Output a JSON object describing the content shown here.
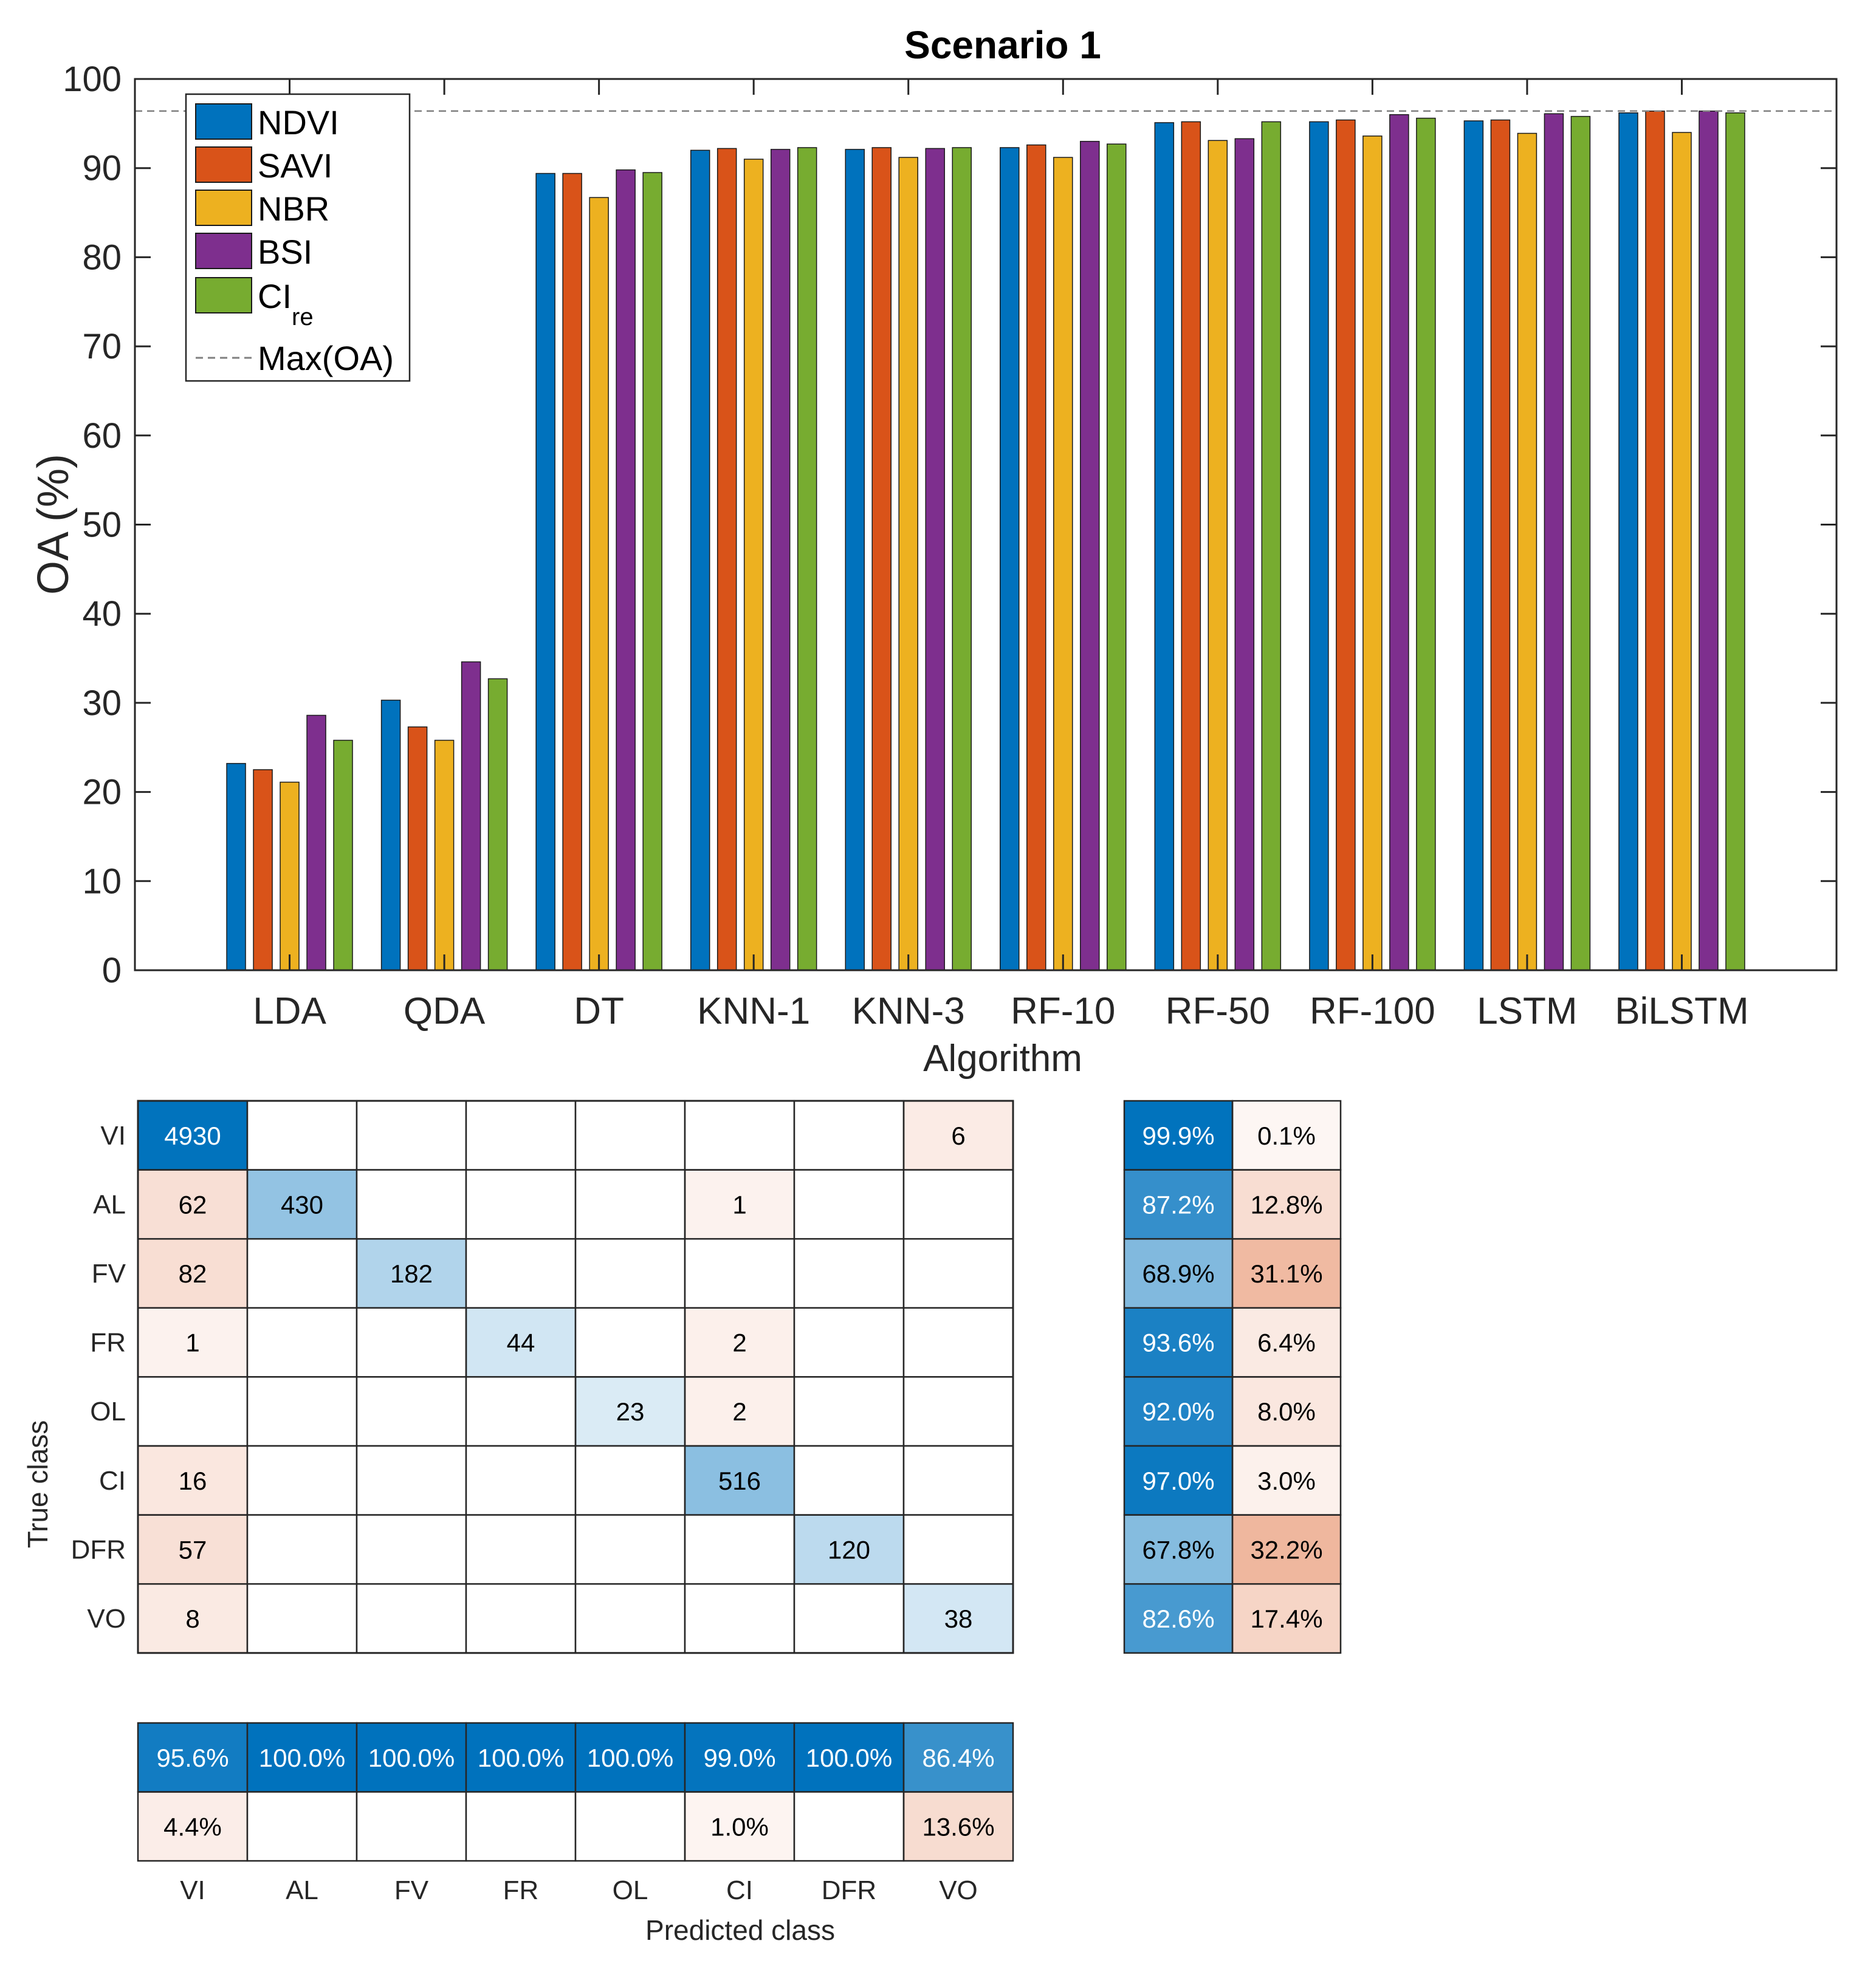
{
  "chart_data": [
    {
      "type": "bar",
      "title": "Scenario 1",
      "xlabel": "Algorithm",
      "ylabel": "OA (%)",
      "ylim": [
        0,
        100
      ],
      "yticks": [
        0,
        10,
        20,
        30,
        40,
        50,
        60,
        70,
        80,
        90,
        100
      ],
      "grid": false,
      "legend_position": "top-left",
      "categories": [
        "LDA",
        "QDA",
        "DT",
        "KNN-1",
        "KNN-3",
        "RF-10",
        "RF-50",
        "RF-100",
        "LSTM",
        "BiLSTM"
      ],
      "series": [
        {
          "name": "NDVI",
          "color": "#0072BD",
          "values": [
            23.2,
            30.3,
            89.4,
            92.0,
            92.1,
            92.3,
            95.1,
            95.2,
            95.3,
            96.2
          ]
        },
        {
          "name": "SAVI",
          "color": "#D95319",
          "values": [
            22.5,
            27.3,
            89.4,
            92.2,
            92.3,
            92.6,
            95.2,
            95.4,
            95.4,
            96.4
          ]
        },
        {
          "name": "NBR",
          "color": "#EDB120",
          "values": [
            21.1,
            25.8,
            86.7,
            91.0,
            91.2,
            91.2,
            93.1,
            93.6,
            93.9,
            94.0
          ]
        },
        {
          "name": "BSI",
          "color": "#7E2F8E",
          "values": [
            28.6,
            34.6,
            89.8,
            92.1,
            92.2,
            93.0,
            93.3,
            96.0,
            96.1,
            96.4
          ]
        },
        {
          "name": "CI",
          "name_subscript": "re",
          "color": "#77AC30",
          "values": [
            25.8,
            32.7,
            89.5,
            92.3,
            92.3,
            92.7,
            95.2,
            95.6,
            95.8,
            96.2
          ]
        }
      ],
      "reference_line": {
        "name": "Max(OA)",
        "value": 96.4,
        "color": "#808080",
        "style": "dashed"
      }
    },
    {
      "type": "heatmap",
      "subtype": "confusion_matrix",
      "ylabel": "True class",
      "xlabel": "Predicted class",
      "classes": [
        "VI",
        "AL",
        "FV",
        "FR",
        "OL",
        "CI",
        "DFR",
        "VO"
      ],
      "matrix": [
        [
          4930,
          null,
          null,
          null,
          null,
          null,
          null,
          6
        ],
        [
          62,
          430,
          null,
          null,
          null,
          1,
          null,
          null
        ],
        [
          82,
          null,
          182,
          null,
          null,
          null,
          null,
          null
        ],
        [
          1,
          null,
          null,
          44,
          null,
          2,
          null,
          null
        ],
        [
          null,
          null,
          null,
          null,
          23,
          2,
          null,
          null
        ],
        [
          16,
          null,
          null,
          null,
          null,
          516,
          null,
          null
        ],
        [
          57,
          null,
          null,
          null,
          null,
          null,
          120,
          null
        ],
        [
          8,
          null,
          null,
          null,
          null,
          null,
          null,
          38
        ]
      ],
      "row_summary": {
        "correct": [
          "99.9%",
          "87.2%",
          "68.9%",
          "93.6%",
          "92.0%",
          "97.0%",
          "67.8%",
          "82.6%"
        ],
        "incorrect": [
          "0.1%",
          "12.8%",
          "31.1%",
          "6.4%",
          "8.0%",
          "3.0%",
          "32.2%",
          "17.4%"
        ]
      },
      "column_summary": {
        "correct": [
          "95.6%",
          "100.0%",
          "100.0%",
          "100.0%",
          "100.0%",
          "99.0%",
          "100.0%",
          "86.4%"
        ],
        "incorrect": [
          "4.4%",
          "",
          "",
          "",
          "",
          "1.0%",
          "",
          "13.6%"
        ]
      }
    }
  ]
}
